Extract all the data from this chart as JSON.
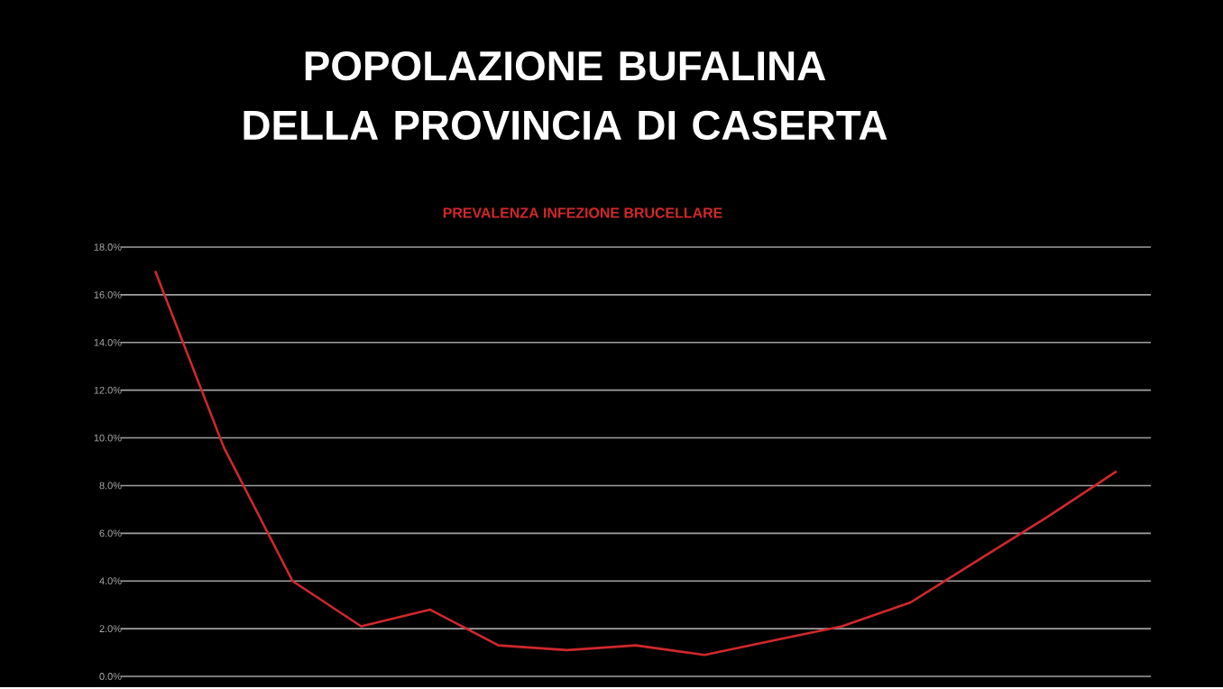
{
  "chart_data": {
    "type": "line",
    "title": "POPOLAZIONE BUFALINA DELLA PROVINCIA DI CASERTA",
    "subtitle": "PREVALENZA INFEZIONE BRUCELLARE",
    "categories": [
      null,
      null,
      null,
      null,
      null,
      null,
      null,
      null,
      null,
      null,
      null,
      null,
      null,
      null,
      null
    ],
    "series": [
      {
        "color": "#d0282a",
        "values": [
          17.0,
          9.6,
          4.0,
          2.1,
          2.8,
          1.3,
          1.1,
          1.3,
          0.9,
          1.5,
          2.1,
          3.1,
          4.9,
          6.7,
          8.6
        ]
      }
    ],
    "ylim": [
      0,
      18
    ],
    "yticks": [
      {
        "value": 0,
        "label": "0.0%"
      },
      {
        "value": 2,
        "label": "2.0%"
      },
      {
        "value": 4,
        "label": "4.0%"
      },
      {
        "value": 6,
        "label": "6.0%"
      },
      {
        "value": 8,
        "label": "8.0%"
      },
      {
        "value": 10,
        "label": "10.0%"
      },
      {
        "value": 12,
        "label": "12.0%"
      },
      {
        "value": 14,
        "label": "14.0%"
      },
      {
        "value": 16,
        "label": "16.0%"
      },
      {
        "value": 18,
        "label": "18.0%"
      }
    ],
    "grid": "y",
    "tick_labels": "y",
    "marker": "none",
    "line_style": "solid"
  }
}
